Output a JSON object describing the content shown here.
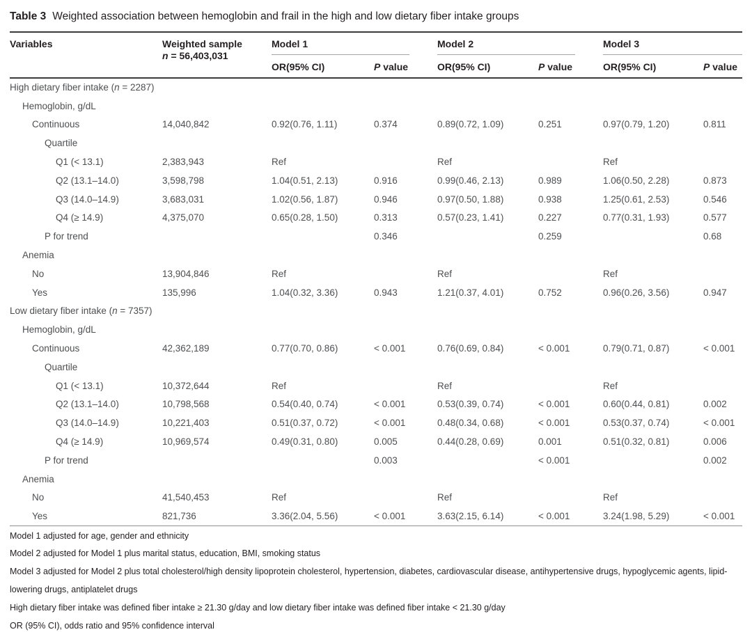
{
  "colors": {
    "heading_color": "#231f20",
    "body_color": "#4e4f51",
    "rule_dark": "#3a3a3a",
    "rule_light": "#a3a3a3",
    "rule_mid": "#8f8f8f",
    "bg": "#ffffff"
  },
  "title": {
    "label": "Table 3",
    "text": "Weighted association between hemoglobin and frail in the high and low dietary fiber intake groups"
  },
  "table": {
    "header": {
      "variables": "Variables",
      "weighted_sample": "Weighted sample",
      "weighted_n": {
        "italic": "n",
        "rest": " = 56,403,031"
      },
      "model_groups": [
        {
          "label": "Model 1"
        },
        {
          "label": "Model 2"
        },
        {
          "label": "Model 3"
        }
      ],
      "or_label": "OR(95% CI)",
      "p_label": {
        "italic": "P",
        "rest": " value"
      }
    },
    "rows": [
      {
        "indent": 0,
        "label_pre": "High dietary fiber intake (",
        "n": "n",
        "label_post": " = 2287)",
        "cells": [
          "",
          "",
          "",
          "",
          "",
          "",
          ""
        ]
      },
      {
        "indent": 1,
        "label": "Hemoglobin, g/dL",
        "cells": [
          "",
          "",
          "",
          "",
          "",
          "",
          ""
        ]
      },
      {
        "indent": 2,
        "label": "Continuous",
        "cells": [
          "14,040,842",
          "0.92(0.76, 1.11)",
          "0.374",
          "0.89(0.72, 1.09)",
          "0.251",
          "0.97(0.79, 1.20)",
          "0.811"
        ]
      },
      {
        "indent": 3,
        "label": "Quartile",
        "cells": [
          "",
          "",
          "",
          "",
          "",
          "",
          ""
        ]
      },
      {
        "indent": 4,
        "label": "Q1 (< 13.1)",
        "cells": [
          "2,383,943",
          "Ref",
          "",
          "Ref",
          "",
          "Ref",
          ""
        ]
      },
      {
        "indent": 4,
        "label": "Q2 (13.1–14.0)",
        "cells": [
          "3,598,798",
          "1.04(0.51, 2.13)",
          "0.916",
          "0.99(0.46, 2.13)",
          "0.989",
          "1.06(0.50, 2.28)",
          "0.873"
        ]
      },
      {
        "indent": 4,
        "label": "Q3 (14.0–14.9)",
        "cells": [
          "3,683,031",
          "1.02(0.56, 1.87)",
          "0.946",
          "0.97(0.50, 1.88)",
          "0.938",
          "1.25(0.61, 2.53)",
          "0.546"
        ]
      },
      {
        "indent": 4,
        "label": "Q4 (≥ 14.9)",
        "cells": [
          "4,375,070",
          "0.65(0.28, 1.50)",
          "0.313",
          "0.57(0.23, 1.41)",
          "0.227",
          "0.77(0.31, 1.93)",
          "0.577"
        ]
      },
      {
        "indent": 3,
        "label": "P for trend",
        "cells": [
          "",
          "",
          "0.346",
          "",
          "0.259",
          "",
          "0.68"
        ]
      },
      {
        "indent": 1,
        "label": "Anemia",
        "cells": [
          "",
          "",
          "",
          "",
          "",
          "",
          ""
        ]
      },
      {
        "indent": 2,
        "label": "No",
        "cells": [
          "13,904,846",
          "Ref",
          "",
          "Ref",
          "",
          "Ref",
          ""
        ]
      },
      {
        "indent": 2,
        "label": "Yes",
        "cells": [
          "135,996",
          "1.04(0.32, 3.36)",
          "0.943",
          "1.21(0.37, 4.01)",
          "0.752",
          "0.96(0.26, 3.56)",
          "0.947"
        ]
      },
      {
        "indent": 0,
        "label_pre": "Low dietary fiber intake (",
        "n": "n",
        "label_post": " = 7357)",
        "cells": [
          "",
          "",
          "",
          "",
          "",
          "",
          ""
        ]
      },
      {
        "indent": 1,
        "label": "Hemoglobin, g/dL",
        "cells": [
          "",
          "",
          "",
          "",
          "",
          "",
          ""
        ]
      },
      {
        "indent": 2,
        "label": "Continuous",
        "cells": [
          "42,362,189",
          "0.77(0.70, 0.86)",
          "< 0.001",
          "0.76(0.69, 0.84)",
          "< 0.001",
          "0.79(0.71, 0.87)",
          "< 0.001"
        ]
      },
      {
        "indent": 3,
        "label": "Quartile",
        "cells": [
          "",
          "",
          "",
          "",
          "",
          "",
          ""
        ]
      },
      {
        "indent": 4,
        "label": "Q1 (< 13.1)",
        "cells": [
          "10,372,644",
          "Ref",
          "",
          "Ref",
          "",
          "Ref",
          ""
        ]
      },
      {
        "indent": 4,
        "label": "Q2 (13.1–14.0)",
        "cells": [
          "10,798,568",
          "0.54(0.40, 0.74)",
          "< 0.001",
          "0.53(0.39, 0.74)",
          "< 0.001",
          "0.60(0.44, 0.81)",
          "0.002"
        ]
      },
      {
        "indent": 4,
        "label": "Q3 (14.0–14.9)",
        "cells": [
          "10,221,403",
          "0.51(0.37, 0.72)",
          "< 0.001",
          "0.48(0.34, 0.68)",
          "< 0.001",
          "0.53(0.37, 0.74)",
          "< 0.001"
        ]
      },
      {
        "indent": 4,
        "label": "Q4 (≥ 14.9)",
        "cells": [
          "10,969,574",
          "0.49(0.31, 0.80)",
          "0.005",
          "0.44(0.28, 0.69)",
          "0.001",
          "0.51(0.32, 0.81)",
          "0.006"
        ]
      },
      {
        "indent": 3,
        "label": "P for trend",
        "cells": [
          "",
          "",
          "0.003",
          "",
          "< 0.001",
          "",
          "0.002"
        ]
      },
      {
        "indent": 1,
        "label": "Anemia",
        "cells": [
          "",
          "",
          "",
          "",
          "",
          "",
          ""
        ]
      },
      {
        "indent": 2,
        "label": "No",
        "cells": [
          "41,540,453",
          "Ref",
          "",
          "Ref",
          "",
          "Ref",
          ""
        ]
      },
      {
        "indent": 2,
        "label": "Yes",
        "cells": [
          "821,736",
          "3.36(2.04, 5.56)",
          "< 0.001",
          "3.63(2.15, 6.14)",
          "< 0.001",
          "3.24(1.98, 5.29)",
          "< 0.001"
        ]
      }
    ]
  },
  "footnotes": [
    "Model 1 adjusted for age, gender and ethnicity",
    "Model 2 adjusted for Model 1 plus marital status, education, BMI, smoking status",
    "Model 3 adjusted for Model 2 plus total cholesterol/high density lipoprotein cholesterol, hypertension, diabetes, cardiovascular disease, antihypertensive drugs, hypoglycemic agents, lipid-lowering drugs, antiplatelet drugs",
    "High dietary fiber intake was defined fiber intake ≥ 21.30 g/day and low dietary fiber intake was defined fiber intake < 21.30 g/day",
    "OR (95% CI), odds ratio and 95% confidence interval"
  ]
}
